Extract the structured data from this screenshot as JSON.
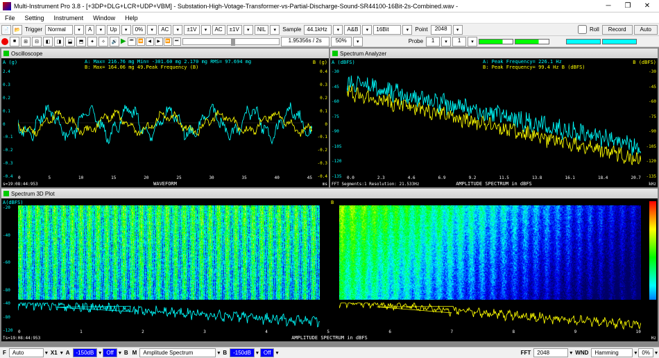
{
  "title": "Multi-Instrument Pro 3.8  -  [+3DP+DLG+LCR+UDP+VBM]  -  Substation-High-Votage-Transformer-vs-Partial-Discharge-Sound-SR44100-16Bit-2s-Combined.wav  -",
  "menu": [
    "File",
    "Setting",
    "Instrument",
    "Window",
    "Help"
  ],
  "toolbar": {
    "trigger": "Trigger",
    "mode": "Normal",
    "ch": "A",
    "edge": "Up",
    "level": "0%",
    "coupling1": "AC",
    "range1": "±1V",
    "coupling2": "AC",
    "range2": "±1V",
    "nil": "NIL",
    "sample": "Sample",
    "sr": "44.1kHz",
    "dev": "A&B",
    "bits": "16Bit",
    "pt": "Point",
    "pts": "2048",
    "roll": "Roll",
    "record": "Record",
    "auto": "Auto",
    "probe": "Probe",
    "p1": "1",
    "p2": "1"
  },
  "toolbar2": {
    "time": "1.95356s / 2s",
    "zoom": "50%"
  },
  "oscilloscope": {
    "title": "Oscilloscope",
    "info_a": "A: Max=   216.76 mg  Min=  -301.60 mg       2.170 mg  RMS=   97.694 mg",
    "info_b": "B: Max=   164.06 mg                         49.Peak Frequency                  (B)",
    "ylabel_a": "A (g)",
    "ylabel_b": "B (g)",
    "yticks_a": [
      "2.4",
      "0.3",
      "0.2",
      "0.1",
      "0",
      "-0.1",
      "-0.2",
      "-0.3",
      "-0.4"
    ],
    "yticks_b": [
      "0.4",
      "0.3",
      "0.2",
      "0.1",
      "0",
      "-0.1",
      "-0.2",
      "-0.3",
      "-0.4"
    ],
    "xticks": [
      "0",
      "5",
      "10",
      "15",
      "20",
      "25",
      "30",
      "35",
      "40",
      "45"
    ],
    "xlabel": "WAVEFORM",
    "corner_l": "s=19:08:44:953",
    "corner_r": "ms"
  },
  "spectrum": {
    "title": "Spectrum Analyzer",
    "info_a": "A: Peak Frequency=    226.1  Hz",
    "info_b": "B: Peak Frequency=     99.4  Hz                                      B (dBFS)",
    "ylabel_a": "A (dBFS)",
    "ylabel_b": "B (dBFS)",
    "yticks_a": [
      "-30",
      "-45",
      "-60",
      "-75",
      "-90",
      "-105",
      "-120",
      "-135"
    ],
    "yticks_b": [
      "-30",
      "-45",
      "-60",
      "-75",
      "-90",
      "-105",
      "-120",
      "-135"
    ],
    "xticks": [
      "0.0",
      "2.3",
      "4.6",
      "6.9",
      "9.2",
      "11.5",
      "13.8",
      "16.1",
      "18.4",
      "20.7"
    ],
    "xlabel": "AMPLITUDE SPECTRUM in dBFS",
    "corner_l": "FFT Segments:1    Resolution: 21.533Hz",
    "corner_r": "kHz"
  },
  "spec3d": {
    "title": "Spectrum 3D Plot",
    "ylabel_a": "A(dBFS)",
    "ylabel_b": "B",
    "yticks": [
      "-20",
      "-40",
      "-60",
      "-80"
    ],
    "yticks2": [
      "-40",
      "-80",
      "-120"
    ],
    "xticks": [
      "0",
      "1",
      "2",
      "3",
      "4",
      "5",
      "6",
      "7",
      "8",
      "9",
      "10"
    ],
    "xlabel": "AMPLITUDE SPECTRUM in dBFS",
    "corner_l": "Ts=19:08:44:953",
    "corner_r": "Hz"
  },
  "status": {
    "f": "F",
    "auto": "Auto",
    "x1": "X1",
    "a": "A",
    "val1": "-150dB",
    "off1": "Off",
    "b": "B",
    "m": "M",
    "amp": "Amplitude Spectrum",
    "val2": "-150dB",
    "off2": "Off",
    "fft": "FFT",
    "fftn": "2048",
    "wnd": "WND",
    "wndt": "Hamming",
    "ovl": "0%"
  },
  "colors": {
    "bg": "#000000",
    "chA": "#00ffff",
    "chB": "#ffff00",
    "grid": "#333333",
    "accent_blue": "#0000ff"
  }
}
